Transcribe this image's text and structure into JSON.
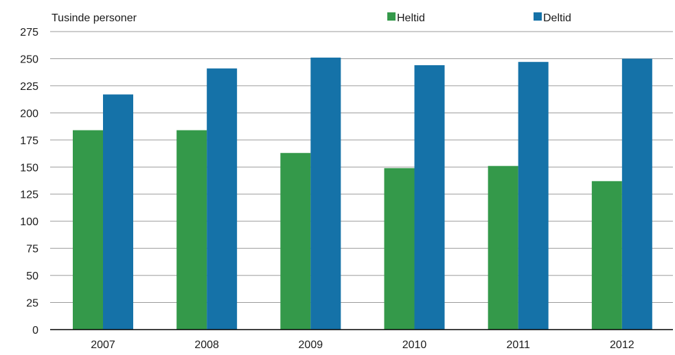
{
  "chart_data": {
    "type": "bar",
    "ylabel": "Tusinde personer",
    "categories": [
      "2007",
      "2008",
      "2009",
      "2010",
      "2011",
      "2012"
    ],
    "series": [
      {
        "name": "Heltid",
        "color": "#34994a",
        "values": [
          184,
          184,
          163,
          149,
          151,
          137
        ]
      },
      {
        "name": "Deltid",
        "color": "#1572a8",
        "values": [
          217,
          241,
          251,
          244,
          247,
          250
        ]
      }
    ],
    "ylim": [
      0,
      275
    ],
    "yticks": [
      "0",
      "25",
      "50",
      "75",
      "100",
      "125",
      "150",
      "175",
      "200",
      "225",
      "250",
      "275"
    ],
    "grid": true,
    "legend_position": "top-right"
  }
}
